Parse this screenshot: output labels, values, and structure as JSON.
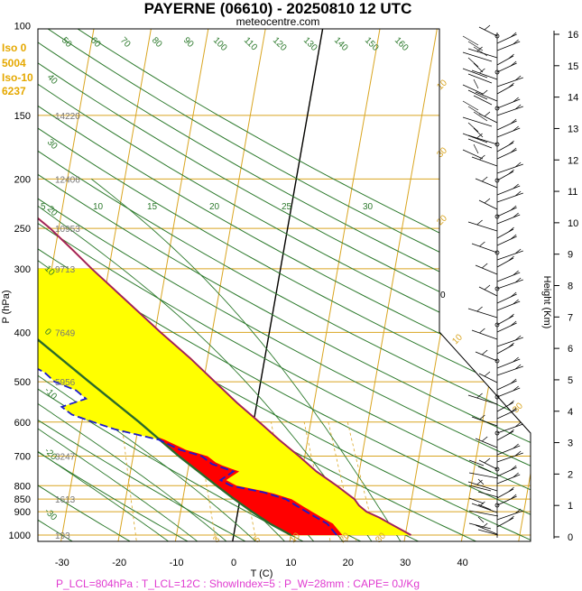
{
  "title": "PAYERNE (06610) - 20250810 12 UTC",
  "subtitle": "meteocentre.com",
  "freezing_info": [
    "Iso 0",
    "5004",
    "Iso-10",
    "6237"
  ],
  "footer": "P_LCL=804hPa : T_LCL=12C : ShowIndex=5 : P_W=28mm : CAPE= 0J/Kg",
  "colors": {
    "isobar": "#d9a520",
    "isotherm": "#d9a520",
    "dry_adiabat": "#2d7a2d",
    "moist_adiabat": "#2d7a2d",
    "temperature": "#e02020",
    "dewpoint": "#1a1acc",
    "parcel": "#2a6a2a",
    "fill_red": "#ff0000",
    "fill_yellow": "#ffff00"
  },
  "chart_data": {
    "type": "line",
    "xlabel": "T (C)",
    "ylabel": "P (hPa)",
    "y2label": "Height (Km)",
    "pressure_ticks": [
      100,
      150,
      200,
      250,
      300,
      400,
      500,
      600,
      700,
      800,
      850,
      900,
      1000
    ],
    "temperature_ticks": [
      -30,
      -20,
      -10,
      0,
      10,
      20,
      30,
      40
    ],
    "height_ticks": [
      0,
      1,
      2,
      3,
      4,
      5,
      6,
      7,
      8,
      9,
      10,
      11,
      12,
      13,
      14,
      15,
      16
    ],
    "geopotential_heights": [
      {
        "p": 150,
        "h": "14220"
      },
      {
        "p": 200,
        "h": "12406"
      },
      {
        "p": 250,
        "h": "10953"
      },
      {
        "p": 300,
        "h": "9713"
      },
      {
        "p": 400,
        "h": "7649"
      },
      {
        "p": 500,
        "h": "5956"
      },
      {
        "p": 700,
        "h": "3247"
      },
      {
        "p": 850,
        "h": "1613"
      },
      {
        "p": 1000,
        "h": "193"
      }
    ],
    "dry_adiabat_labels": [
      "50",
      "60",
      "70",
      "80",
      "90",
      "100",
      "110",
      "120",
      "130",
      "140",
      "150",
      "160",
      "40",
      "30",
      "20",
      "10",
      "0",
      "-10",
      "-20",
      "-30"
    ],
    "moist_adiabat_labels": [
      "5",
      "10",
      "15",
      "20",
      "25",
      "30"
    ],
    "mixing_ratio_labels": [
      "3",
      "5",
      "10",
      "20",
      "30",
      "0",
      "10",
      "20",
      "30",
      "10",
      "30"
    ],
    "series": [
      {
        "name": "temperature",
        "points": [
          [
            1000,
            31
          ],
          [
            950,
            27
          ],
          [
            925,
            25
          ],
          [
            900,
            22.5
          ],
          [
            875,
            21
          ],
          [
            850,
            20
          ],
          [
            800,
            16.5
          ],
          [
            750,
            12.5
          ],
          [
            700,
            9
          ],
          [
            650,
            5
          ],
          [
            600,
            1
          ],
          [
            550,
            -3.5
          ],
          [
            500,
            -8
          ],
          [
            450,
            -13
          ],
          [
            400,
            -19
          ],
          [
            350,
            -25.5
          ],
          [
            300,
            -33
          ],
          [
            275,
            -37
          ],
          [
            250,
            -41.5
          ],
          [
            230,
            -46
          ],
          [
            210,
            -49
          ],
          [
            200,
            -50
          ],
          [
            180,
            -52
          ],
          [
            160,
            -54.5
          ],
          [
            150,
            -56
          ],
          [
            140,
            -58
          ],
          [
            130,
            -59
          ],
          [
            120,
            -62
          ],
          [
            110,
            -64
          ],
          [
            100,
            -66
          ]
        ]
      },
      {
        "name": "dewpoint",
        "points": [
          [
            1000,
            18
          ],
          [
            975,
            17
          ],
          [
            950,
            16
          ],
          [
            925,
            14
          ],
          [
            900,
            12
          ],
          [
            875,
            10
          ],
          [
            850,
            8
          ],
          [
            825,
            4
          ],
          [
            800,
            -2
          ],
          [
            780,
            -4
          ],
          [
            750,
            -2
          ],
          [
            725,
            -6
          ],
          [
            700,
            -8
          ],
          [
            680,
            -12
          ],
          [
            650,
            -16
          ],
          [
            620,
            -24
          ],
          [
            600,
            -28
          ],
          [
            580,
            -32
          ],
          [
            560,
            -34
          ],
          [
            540,
            -30
          ],
          [
            520,
            -32
          ],
          [
            500,
            -36
          ],
          [
            480,
            -38
          ],
          [
            450,
            -43
          ],
          [
            420,
            -46
          ],
          [
            400,
            -48
          ],
          [
            370,
            -52
          ],
          [
            350,
            -56
          ],
          [
            330,
            -58
          ],
          [
            300,
            -60
          ],
          [
            280,
            -58
          ],
          [
            265,
            -56
          ],
          [
            250,
            -65
          ],
          [
            220,
            -74
          ],
          [
            200,
            -76
          ],
          [
            180,
            -80
          ],
          [
            160,
            -82
          ],
          [
            150,
            -84
          ],
          [
            130,
            -86
          ],
          [
            120,
            -88
          ],
          [
            110,
            -90
          ],
          [
            100,
            -92
          ]
        ]
      },
      {
        "name": "parcel",
        "points": [
          [
            1000,
            10
          ],
          [
            950,
            6
          ],
          [
            900,
            2.5
          ],
          [
            850,
            -1
          ],
          [
            800,
            -4.5
          ],
          [
            700,
            -12
          ],
          [
            600,
            -20
          ],
          [
            500,
            -30
          ],
          [
            400,
            -42
          ],
          [
            300,
            -57
          ],
          [
            250,
            -66
          ]
        ]
      }
    ]
  }
}
